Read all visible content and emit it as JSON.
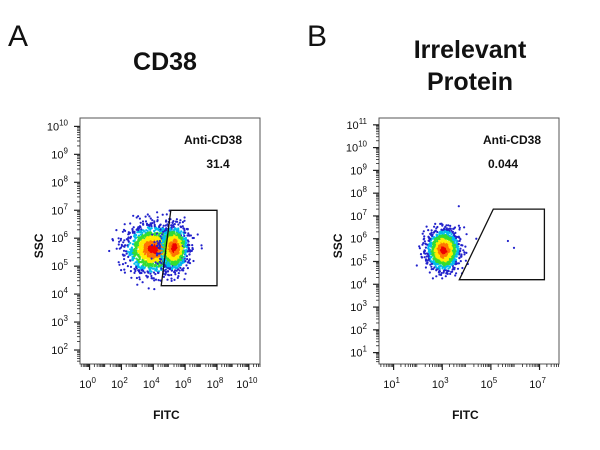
{
  "chart_data": [
    {
      "type": "scatter",
      "panel_label": "A",
      "title": "CD38",
      "xlabel": "FITC",
      "ylabel": "SSC",
      "xscale": "log",
      "yscale": "log",
      "xlim_log10": [
        -0.6,
        10.7
      ],
      "ylim_log10": [
        1.5,
        10.3
      ],
      "xticks": [
        {
          "base": "10",
          "exp": "0",
          "v": 0
        },
        {
          "base": "10",
          "exp": "2",
          "v": 2
        },
        {
          "base": "10",
          "exp": "4",
          "v": 4
        },
        {
          "base": "10",
          "exp": "6",
          "v": 6
        },
        {
          "base": "10",
          "exp": "8",
          "v": 8
        },
        {
          "base": "10",
          "exp": "10",
          "v": 10
        }
      ],
      "yticks": [
        {
          "base": "10",
          "exp": "2",
          "v": 2
        },
        {
          "base": "10",
          "exp": "3",
          "v": 3
        },
        {
          "base": "10",
          "exp": "4",
          "v": 4
        },
        {
          "base": "10",
          "exp": "5",
          "v": 5
        },
        {
          "base": "10",
          "exp": "6",
          "v": 6
        },
        {
          "base": "10",
          "exp": "7",
          "v": 7
        },
        {
          "base": "10",
          "exp": "8",
          "v": 8
        },
        {
          "base": "10",
          "exp": "9",
          "v": 9
        },
        {
          "base": "10",
          "exp": "10",
          "v": 10
        }
      ],
      "gate": {
        "label": "Anti-CD38",
        "percent": "31.4",
        "polygon_log10": [
          [
            5.1,
            7.0
          ],
          [
            8.0,
            7.0
          ],
          [
            8.0,
            4.3
          ],
          [
            4.5,
            4.3
          ]
        ]
      },
      "populations": [
        {
          "center_log10": [
            4.0,
            5.6
          ],
          "spread_log10": [
            0.85,
            0.42
          ],
          "count": 1500
        },
        {
          "center_log10": [
            5.3,
            5.65
          ],
          "spread_log10": [
            0.45,
            0.4
          ],
          "count": 800
        }
      ],
      "density_colors": [
        "#2222cc",
        "#00bbee",
        "#33dd33",
        "#ffee00",
        "#ff7700",
        "#ee0000"
      ],
      "grid": false
    },
    {
      "type": "scatter",
      "panel_label": "B",
      "title": "Irrelevant\nProtein",
      "title_lines": [
        "Irrelevant",
        "Protein"
      ],
      "xlabel": "FITC",
      "ylabel": "SSC",
      "xscale": "log",
      "yscale": "log",
      "xlim_log10": [
        0.4,
        7.8
      ],
      "ylim_log10": [
        0.5,
        11.3
      ],
      "xticks": [
        {
          "base": "10",
          "exp": "1",
          "v": 1
        },
        {
          "base": "10",
          "exp": "3",
          "v": 3
        },
        {
          "base": "10",
          "exp": "5",
          "v": 5
        },
        {
          "base": "10",
          "exp": "7",
          "v": 7
        }
      ],
      "yticks": [
        {
          "base": "10",
          "exp": "1",
          "v": 1
        },
        {
          "base": "10",
          "exp": "2",
          "v": 2
        },
        {
          "base": "10",
          "exp": "3",
          "v": 3
        },
        {
          "base": "10",
          "exp": "4",
          "v": 4
        },
        {
          "base": "10",
          "exp": "5",
          "v": 5
        },
        {
          "base": "10",
          "exp": "6",
          "v": 6
        },
        {
          "base": "10",
          "exp": "7",
          "v": 7
        },
        {
          "base": "10",
          "exp": "8",
          "v": 8
        },
        {
          "base": "10",
          "exp": "9",
          "v": 9
        },
        {
          "base": "10",
          "exp": "10",
          "v": 10
        },
        {
          "base": "10",
          "exp": "11",
          "v": 11
        }
      ],
      "gate": {
        "label": "Anti-CD38",
        "percent": "0.044",
        "polygon_log10": [
          [
            5.1,
            7.3
          ],
          [
            7.2,
            7.3
          ],
          [
            7.2,
            4.2
          ],
          [
            3.7,
            4.2
          ]
        ]
      },
      "populations": [
        {
          "center_log10": [
            3.05,
            5.5
          ],
          "spread_log10": [
            0.33,
            0.45
          ],
          "count": 1200
        }
      ],
      "density_colors": [
        "#2222cc",
        "#00bbee",
        "#33dd33",
        "#ffee00",
        "#ff7700",
        "#ee0000"
      ],
      "grid": false
    }
  ]
}
